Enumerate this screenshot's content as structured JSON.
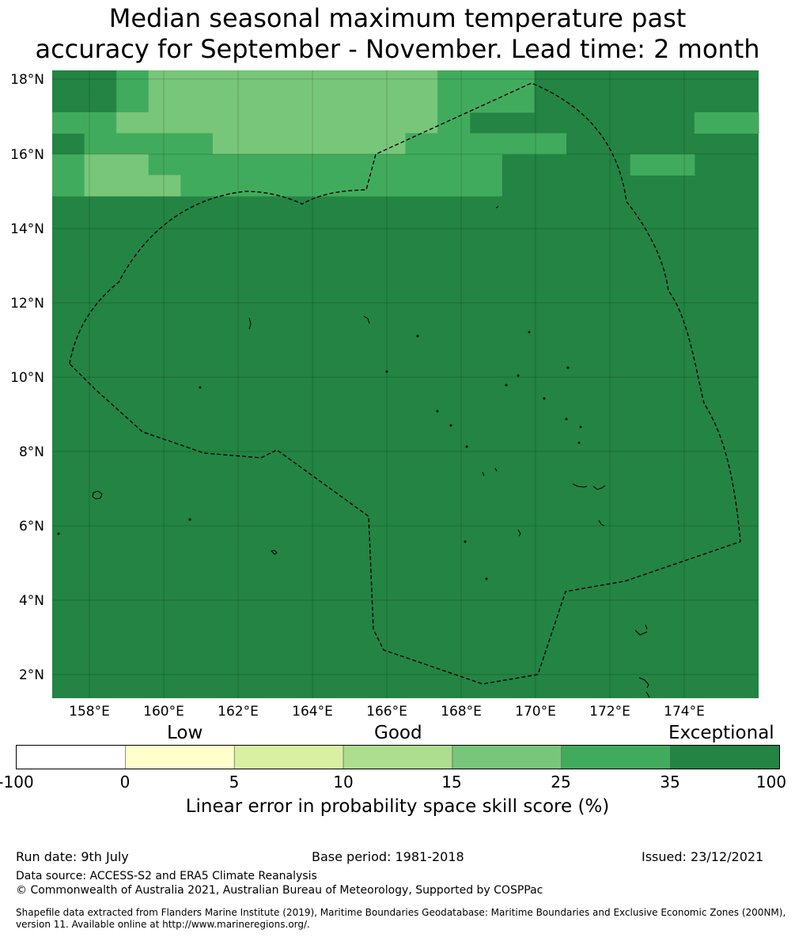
{
  "title_line1": "Median seasonal maximum temperature past",
  "title_line2": "accuracy for September - November. Lead time: 2 month",
  "map": {
    "lat_labels": [
      "18°N",
      "16°N",
      "14°N",
      "12°N",
      "10°N",
      "8°N",
      "6°N",
      "4°N",
      "2°N"
    ],
    "lon_labels": [
      "158°E",
      "160°E",
      "162°E",
      "164°E",
      "166°E",
      "168°E",
      "170°E",
      "172°E",
      "174°E"
    ],
    "lon_range": [
      157,
      176
    ],
    "lat_range": [
      1.4,
      18.2
    ],
    "grid_rows": [
      "1134444444443332222222",
      "1234444444443332222222",
      "3344444444443222222233",
      "2333344444433333222222",
      "3443333333333322223322",
      "3444333333333322222222",
      "2222222222222222222222",
      "2222222222222222222222",
      "2222222222222222222222",
      "2222222222222222222222",
      "2222222222222222222222",
      "2222222222222222222222",
      "2222222222222222222222",
      "2222222222222222222222",
      "2222222222222222222222",
      "2222222222222222222222",
      "2222222222222222222222",
      "2222222222222222222222",
      "2222222222222222222222",
      "2222222222222222222222",
      "2222222222222222222222",
      "2222222222222222222222",
      "2222222222222222222222",
      "2222222222222222222222",
      "2222222222222222222222",
      "2222222222222222222222",
      "2222222222222222222222",
      "2222222222222222222222",
      "2222222222222222222222",
      "2222222222222222222222"
    ]
  },
  "colorbar": {
    "categories": [
      "Low",
      "Good",
      "Exceptional"
    ],
    "ticks": [
      "-100",
      "0",
      "5",
      "10",
      "15",
      "25",
      "35",
      "100"
    ],
    "colors": [
      "#ffffff",
      "#ffffcc",
      "#d9f0a3",
      "#addd8e",
      "#78c679",
      "#41ab5d",
      "#238443"
    ],
    "title": "Linear error in probability space skill score (%)"
  },
  "footer": {
    "run_date": "Run date: 9th July",
    "base_period": "Base period: 1981-2018",
    "issued": "Issued: 23/12/2021",
    "data_source": "Data source: ACCESS-S2 and ERA5 Climate Reanalysis",
    "copyright": "© Commonwealth of Australia 2021, Australian Bureau of Meteorology, Supported by COSPPac",
    "shapefile_line1": "Shapefile data extracted from Flanders Marine Institute (2019), Maritime Boundaries Geodatabase: Maritime Boundaries and Exclusive Economic Zones (200NM),",
    "shapefile_line2": "version 11. Available online at http://www.marineregions.org/."
  }
}
